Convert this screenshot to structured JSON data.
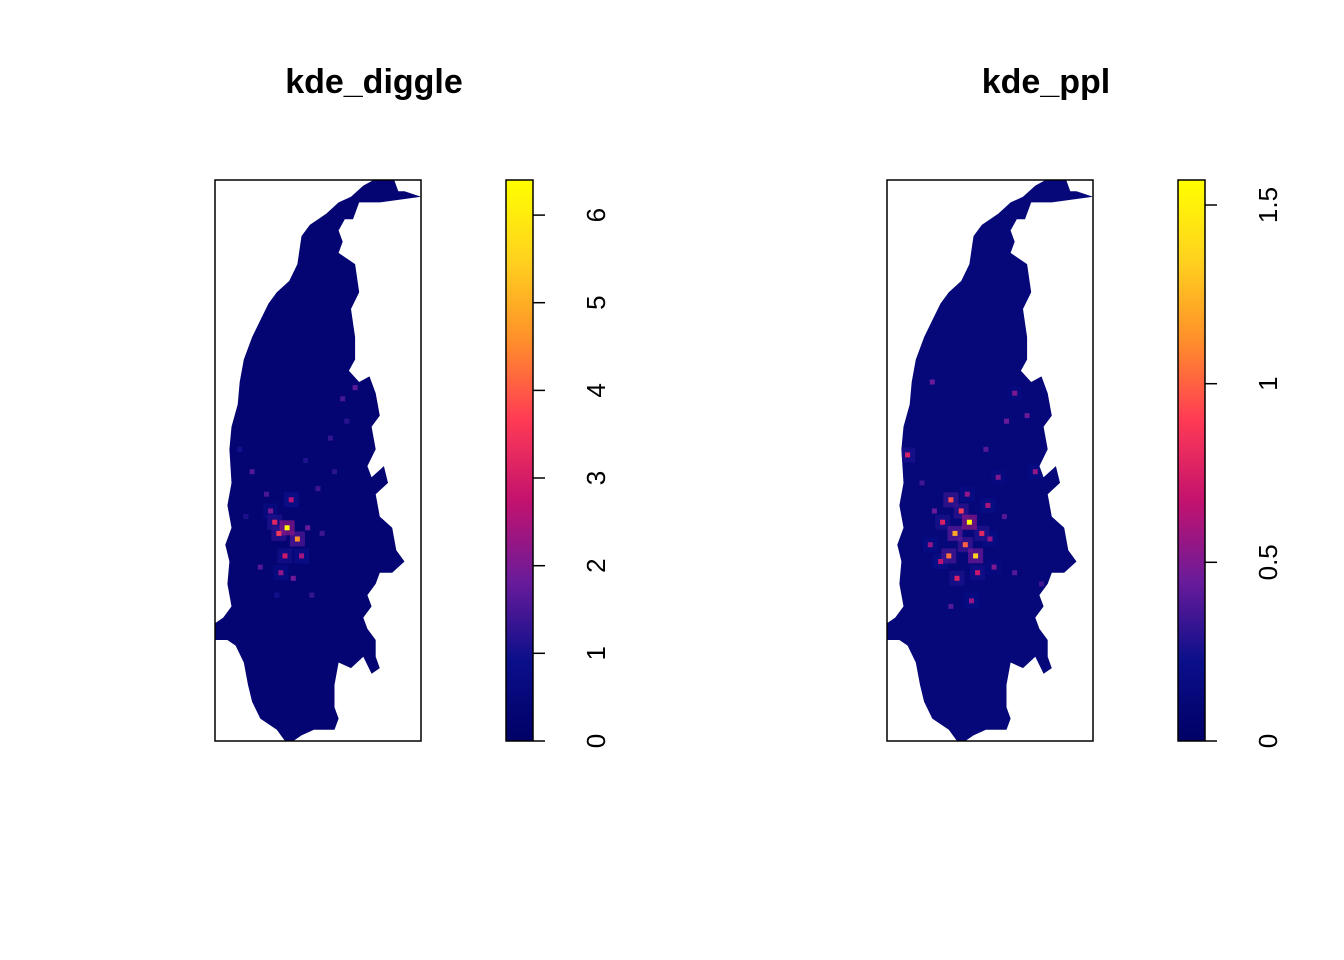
{
  "colors": {
    "background": "#ffffff",
    "region_base": "#000066",
    "frame": "#000000",
    "colormap_stops": [
      "#000066",
      "#0b0f8a",
      "#6a1b9a",
      "#c4126e",
      "#ff3a55",
      "#ff8f2a",
      "#ffd21e",
      "#ffff00"
    ]
  },
  "chart_data": [
    {
      "type": "heatmap",
      "title": "kde_diggle",
      "xlabel": "",
      "ylabel": "",
      "axes": "none",
      "colorbar": {
        "placement": "right",
        "range": [
          0,
          6.4
        ],
        "ticks": [
          0,
          1,
          2,
          3,
          4,
          5,
          6
        ],
        "tick_labels": [
          "0",
          "1",
          "2",
          "3",
          "4",
          "5",
          "6"
        ]
      },
      "surface": {
        "background_value": 0.3,
        "hotspots": [
          {
            "u": 0.35,
            "v": 0.62,
            "value": 6.3
          },
          {
            "u": 0.4,
            "v": 0.64,
            "value": 4.6
          },
          {
            "u": 0.31,
            "v": 0.63,
            "value": 3.6
          },
          {
            "u": 0.29,
            "v": 0.61,
            "value": 3.2
          },
          {
            "u": 0.34,
            "v": 0.67,
            "value": 2.9
          },
          {
            "u": 0.37,
            "v": 0.57,
            "value": 2.6
          },
          {
            "u": 0.42,
            "v": 0.67,
            "value": 2.4
          },
          {
            "u": 0.32,
            "v": 0.7,
            "value": 2.2
          },
          {
            "u": 0.27,
            "v": 0.59,
            "value": 2.0
          },
          {
            "u": 0.38,
            "v": 0.71,
            "value": 1.9
          },
          {
            "u": 0.18,
            "v": 0.52,
            "value": 1.6
          },
          {
            "u": 0.45,
            "v": 0.62,
            "value": 1.8
          },
          {
            "u": 0.5,
            "v": 0.55,
            "value": 1.4
          },
          {
            "u": 0.56,
            "v": 0.46,
            "value": 1.3
          },
          {
            "u": 0.62,
            "v": 0.39,
            "value": 1.5
          },
          {
            "u": 0.68,
            "v": 0.37,
            "value": 1.7
          },
          {
            "u": 0.64,
            "v": 0.43,
            "value": 1.2
          },
          {
            "u": 0.25,
            "v": 0.56,
            "value": 1.5
          },
          {
            "u": 0.22,
            "v": 0.69,
            "value": 1.6
          },
          {
            "u": 0.47,
            "v": 0.74,
            "value": 1.3
          },
          {
            "u": 0.52,
            "v": 0.63,
            "value": 1.4
          },
          {
            "u": 0.15,
            "v": 0.6,
            "value": 1.1
          },
          {
            "u": 0.58,
            "v": 0.52,
            "value": 1.2
          },
          {
            "u": 0.44,
            "v": 0.5,
            "value": 1.1
          },
          {
            "u": 0.3,
            "v": 0.74,
            "value": 1.0
          },
          {
            "u": 0.12,
            "v": 0.48,
            "value": 1.0
          }
        ]
      }
    },
    {
      "type": "heatmap",
      "title": "kde_ppl",
      "xlabel": "",
      "ylabel": "",
      "axes": "none",
      "colorbar": {
        "placement": "right",
        "range": [
          0,
          1.57
        ],
        "ticks": [
          0,
          0.5,
          1,
          1.5
        ],
        "tick_labels": [
          "0",
          "0.5",
          "1",
          "1.5"
        ]
      },
      "surface": {
        "background_value": 0.12,
        "hotspots": [
          {
            "u": 0.4,
            "v": 0.61,
            "value": 1.55
          },
          {
            "u": 0.43,
            "v": 0.67,
            "value": 1.35
          },
          {
            "u": 0.33,
            "v": 0.63,
            "value": 1.2
          },
          {
            "u": 0.3,
            "v": 0.67,
            "value": 1.05
          },
          {
            "u": 0.38,
            "v": 0.65,
            "value": 1.0
          },
          {
            "u": 0.31,
            "v": 0.57,
            "value": 0.95
          },
          {
            "u": 0.36,
            "v": 0.59,
            "value": 0.9
          },
          {
            "u": 0.46,
            "v": 0.63,
            "value": 0.8
          },
          {
            "u": 0.27,
            "v": 0.61,
            "value": 0.75
          },
          {
            "u": 0.34,
            "v": 0.71,
            "value": 0.75
          },
          {
            "u": 0.44,
            "v": 0.7,
            "value": 0.7
          },
          {
            "u": 0.26,
            "v": 0.68,
            "value": 0.65
          },
          {
            "u": 0.49,
            "v": 0.58,
            "value": 0.6
          },
          {
            "u": 0.5,
            "v": 0.64,
            "value": 0.55
          },
          {
            "u": 0.39,
            "v": 0.56,
            "value": 0.55
          },
          {
            "u": 0.54,
            "v": 0.53,
            "value": 0.5
          },
          {
            "u": 0.52,
            "v": 0.69,
            "value": 0.5
          },
          {
            "u": 0.21,
            "v": 0.65,
            "value": 0.55
          },
          {
            "u": 0.23,
            "v": 0.59,
            "value": 0.45
          },
          {
            "u": 0.1,
            "v": 0.49,
            "value": 0.75
          },
          {
            "u": 0.22,
            "v": 0.36,
            "value": 0.45
          },
          {
            "u": 0.58,
            "v": 0.43,
            "value": 0.45
          },
          {
            "u": 0.62,
            "v": 0.38,
            "value": 0.5
          },
          {
            "u": 0.72,
            "v": 0.52,
            "value": 0.55
          },
          {
            "u": 0.68,
            "v": 0.42,
            "value": 0.45
          },
          {
            "u": 0.48,
            "v": 0.48,
            "value": 0.4
          },
          {
            "u": 0.41,
            "v": 0.75,
            "value": 0.55
          },
          {
            "u": 0.31,
            "v": 0.76,
            "value": 0.4
          },
          {
            "u": 0.57,
            "v": 0.6,
            "value": 0.4
          },
          {
            "u": 0.17,
            "v": 0.54,
            "value": 0.35
          },
          {
            "u": 0.75,
            "v": 0.72,
            "value": 0.35
          },
          {
            "u": 0.62,
            "v": 0.7,
            "value": 0.4
          }
        ]
      }
    }
  ]
}
